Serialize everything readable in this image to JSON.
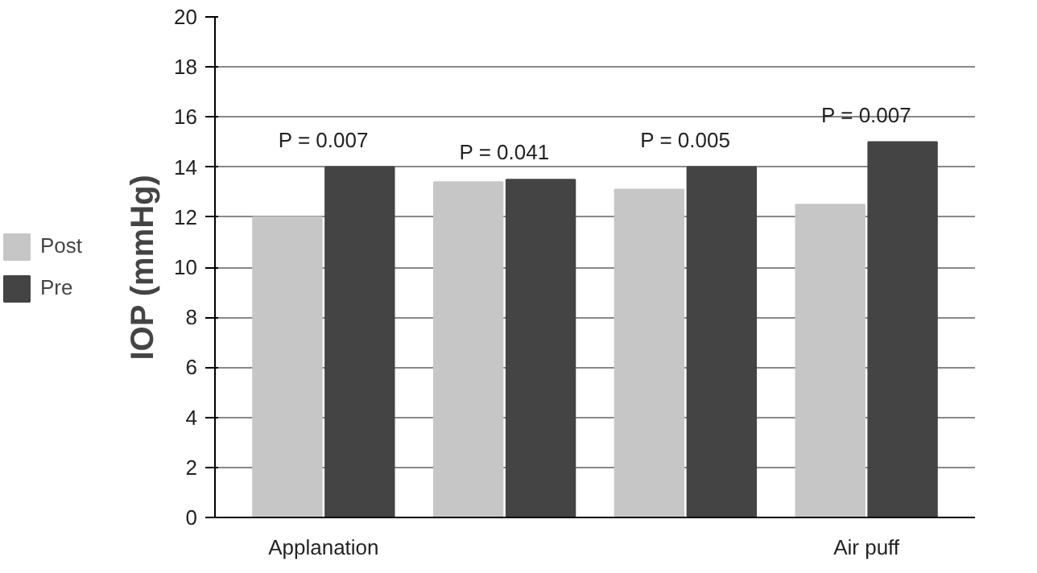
{
  "chart_data": {
    "type": "bar",
    "ylabel": "IOP (mmHg)",
    "categories": [
      "Applanation",
      null,
      null,
      "Air puff"
    ],
    "series": [
      {
        "name": "Post",
        "color": "#c6c6c6",
        "values": [
          12,
          13.4,
          13.1,
          12.5
        ]
      },
      {
        "name": "Pre",
        "color": "#444444",
        "values": [
          14,
          13.5,
          14,
          15
        ]
      }
    ],
    "ylim": [
      0,
      20
    ],
    "yticks": [
      0,
      2,
      4,
      6,
      8,
      10,
      12,
      14,
      16,
      18,
      20
    ],
    "grid": "y",
    "legend": "left",
    "annotations": [
      "P = 0.007",
      "P = 0.041",
      "P = 0.005",
      "P = 0.007"
    ]
  }
}
